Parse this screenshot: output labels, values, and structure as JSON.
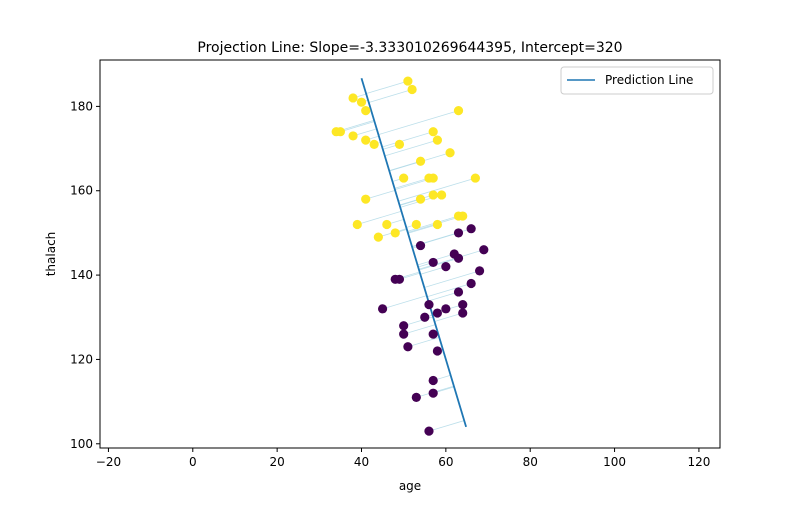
{
  "chart_data": {
    "type": "scatter",
    "title": "Projection Line: Slope=-3.333010269644395, Intercept=320",
    "xlabel": "age",
    "ylabel": "thalach",
    "xlim": [
      -22,
      125
    ],
    "ylim": [
      99,
      191
    ],
    "xticks": [
      -20,
      0,
      20,
      40,
      60,
      80,
      100,
      120
    ],
    "yticks": [
      100,
      120,
      140,
      160,
      180
    ],
    "xtick_labels": [
      "−20",
      "0",
      "20",
      "40",
      "60",
      "80",
      "100",
      "120"
    ],
    "ytick_labels": [
      "100",
      "120",
      "140",
      "160",
      "180"
    ],
    "grid": false,
    "legend": {
      "position": "top-right",
      "entries": [
        "Prediction Line"
      ]
    },
    "colors": {
      "class_0": "#440154",
      "class_1": "#fde725",
      "line": "#1f77b4",
      "projection": "#add8e6"
    },
    "prediction_line": {
      "x_range": [
        40.0,
        64.8
      ],
      "slope": -3.333010269644395,
      "intercept": 320
    },
    "points": [
      {
        "x": 51,
        "y": 186,
        "class": 1
      },
      {
        "x": 52,
        "y": 184,
        "class": 1
      },
      {
        "x": 38,
        "y": 182,
        "class": 1
      },
      {
        "x": 40,
        "y": 181,
        "class": 1
      },
      {
        "x": 41,
        "y": 179,
        "class": 1
      },
      {
        "x": 63,
        "y": 179,
        "class": 1
      },
      {
        "x": 34,
        "y": 174,
        "class": 1
      },
      {
        "x": 35,
        "y": 174,
        "class": 1
      },
      {
        "x": 57,
        "y": 174,
        "class": 1
      },
      {
        "x": 38,
        "y": 173,
        "class": 1
      },
      {
        "x": 41,
        "y": 172,
        "class": 1
      },
      {
        "x": 58,
        "y": 172,
        "class": 1
      },
      {
        "x": 43,
        "y": 171,
        "class": 1
      },
      {
        "x": 49,
        "y": 171,
        "class": 1
      },
      {
        "x": 61,
        "y": 169,
        "class": 1
      },
      {
        "x": 54,
        "y": 167,
        "class": 1
      },
      {
        "x": 50,
        "y": 163,
        "class": 1
      },
      {
        "x": 56,
        "y": 163,
        "class": 1
      },
      {
        "x": 57,
        "y": 163,
        "class": 1
      },
      {
        "x": 67,
        "y": 163,
        "class": 1
      },
      {
        "x": 57,
        "y": 159,
        "class": 1
      },
      {
        "x": 59,
        "y": 159,
        "class": 1
      },
      {
        "x": 41,
        "y": 158,
        "class": 1
      },
      {
        "x": 54,
        "y": 158,
        "class": 1
      },
      {
        "x": 63,
        "y": 154,
        "class": 1
      },
      {
        "x": 64,
        "y": 154,
        "class": 1
      },
      {
        "x": 39,
        "y": 152,
        "class": 1
      },
      {
        "x": 46,
        "y": 152,
        "class": 1
      },
      {
        "x": 53,
        "y": 152,
        "class": 1
      },
      {
        "x": 58,
        "y": 152,
        "class": 1
      },
      {
        "x": 48,
        "y": 150,
        "class": 1
      },
      {
        "x": 44,
        "y": 149,
        "class": 1
      },
      {
        "x": 66,
        "y": 151,
        "class": 0
      },
      {
        "x": 63,
        "y": 150,
        "class": 0
      },
      {
        "x": 54,
        "y": 147,
        "class": 0
      },
      {
        "x": 69,
        "y": 146,
        "class": 0
      },
      {
        "x": 62,
        "y": 145,
        "class": 0
      },
      {
        "x": 63,
        "y": 144,
        "class": 0
      },
      {
        "x": 57,
        "y": 143,
        "class": 0
      },
      {
        "x": 60,
        "y": 142,
        "class": 0
      },
      {
        "x": 68,
        "y": 141,
        "class": 0
      },
      {
        "x": 48,
        "y": 139,
        "class": 0
      },
      {
        "x": 49,
        "y": 139,
        "class": 0
      },
      {
        "x": 66,
        "y": 138,
        "class": 0
      },
      {
        "x": 63,
        "y": 136,
        "class": 0
      },
      {
        "x": 56,
        "y": 133,
        "class": 0
      },
      {
        "x": 64,
        "y": 133,
        "class": 0
      },
      {
        "x": 45,
        "y": 132,
        "class": 0
      },
      {
        "x": 60,
        "y": 132,
        "class": 0
      },
      {
        "x": 58,
        "y": 131,
        "class": 0
      },
      {
        "x": 64,
        "y": 131,
        "class": 0
      },
      {
        "x": 55,
        "y": 130,
        "class": 0
      },
      {
        "x": 50,
        "y": 128,
        "class": 0
      },
      {
        "x": 50,
        "y": 126,
        "class": 0
      },
      {
        "x": 57,
        "y": 126,
        "class": 0
      },
      {
        "x": 51,
        "y": 123,
        "class": 0
      },
      {
        "x": 58,
        "y": 122,
        "class": 0
      },
      {
        "x": 57,
        "y": 115,
        "class": 0
      },
      {
        "x": 57,
        "y": 112,
        "class": 0
      },
      {
        "x": 53,
        "y": 111,
        "class": 0
      },
      {
        "x": 56,
        "y": 103,
        "class": 0
      }
    ]
  }
}
